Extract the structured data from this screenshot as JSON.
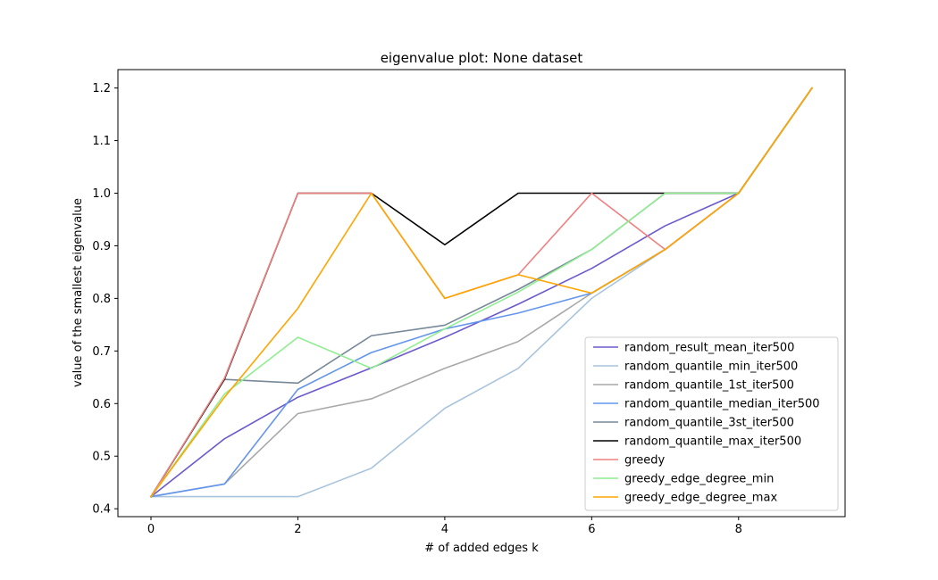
{
  "chart_data": {
    "type": "line",
    "title": "eigenvalue plot: None dataset",
    "xlabel": "# of added edges k",
    "ylabel": "value of the smallest eigenvalue",
    "xlim": [
      -0.45,
      9.45
    ],
    "ylim": [
      0.385,
      1.235
    ],
    "xticks": [
      0,
      2,
      4,
      6,
      8
    ],
    "xtick_labels": [
      "0",
      "2",
      "4",
      "6",
      "8"
    ],
    "yticks": [
      0.4,
      0.5,
      0.6,
      0.7,
      0.8,
      0.9,
      1.0,
      1.1,
      1.2
    ],
    "ytick_labels": [
      "0.4",
      "0.5",
      "0.6",
      "0.7",
      "0.8",
      "0.9",
      "1.0",
      "1.1",
      "1.2"
    ],
    "grid": false,
    "legend_position": "lower-right",
    "x": [
      0,
      1,
      2,
      3,
      4,
      5,
      6,
      7,
      8,
      9
    ],
    "series": [
      {
        "name": "random_result_mean_iter500",
        "color": "#6a5acd",
        "values": [
          0.423,
          0.533,
          0.612,
          0.668,
          0.726,
          0.789,
          0.857,
          0.938,
          1.0,
          1.2
        ]
      },
      {
        "name": "random_quantile_min_iter500",
        "color": "#a8c4dd",
        "values": [
          0.423,
          0.423,
          0.423,
          0.477,
          0.591,
          0.667,
          0.8,
          0.893,
          1.0,
          1.2
        ]
      },
      {
        "name": "random_quantile_1st_iter500",
        "color": "#a9a9a9",
        "values": [
          0.423,
          0.447,
          0.581,
          0.609,
          0.667,
          0.718,
          0.81,
          0.893,
          1.0,
          1.2
        ]
      },
      {
        "name": "random_quantile_median_iter500",
        "color": "#6495ed",
        "values": [
          0.423,
          0.447,
          0.627,
          0.697,
          0.742,
          0.772,
          0.81,
          0.893,
          1.0,
          1.2
        ]
      },
      {
        "name": "random_quantile_3st_iter500",
        "color": "#778899",
        "values": [
          0.423,
          0.646,
          0.639,
          0.729,
          0.749,
          0.817,
          0.893,
          1.0,
          1.0,
          1.2
        ]
      },
      {
        "name": "random_quantile_max_iter500",
        "color": "#000000",
        "values": [
          0.423,
          0.646,
          1.0,
          1.0,
          0.902,
          1.0,
          1.0,
          1.0,
          1.0,
          1.2
        ]
      },
      {
        "name": "greedy",
        "color": "#f08080",
        "values": [
          0.423,
          0.648,
          1.0,
          1.0,
          0.8,
          0.845,
          1.0,
          0.893,
          1.0,
          1.2
        ]
      },
      {
        "name": "greedy_edge_degree_min",
        "color": "#90ee90",
        "values": [
          0.423,
          0.618,
          0.726,
          0.667,
          0.742,
          0.812,
          0.893,
          1.0,
          1.0,
          1.2
        ]
      },
      {
        "name": "greedy_edge_degree_max",
        "color": "#ffa500",
        "values": [
          0.423,
          0.612,
          0.781,
          1.0,
          0.8,
          0.845,
          0.81,
          0.893,
          1.0,
          1.2
        ]
      }
    ]
  }
}
